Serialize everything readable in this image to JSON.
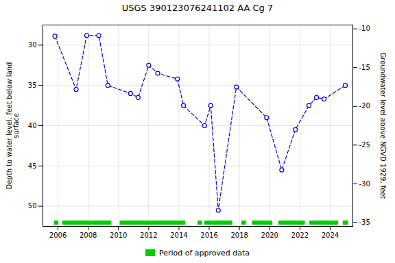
{
  "chart_data": {
    "type": "line",
    "title": "USGS 390123076241102 AA Cg   7",
    "x": [
      2005.8,
      2007.2,
      2007.9,
      2008.7,
      2009.3,
      2010.8,
      2011.3,
      2012.0,
      2012.6,
      2013.9,
      2014.3,
      2015.7,
      2016.1,
      2016.6,
      2017.8,
      2019.8,
      2020.8,
      2021.7,
      2022.6,
      2023.1,
      2023.6,
      2025.0
    ],
    "series": [
      {
        "color": "#0000cc",
        "line_style": "dashed",
        "marker": "o",
        "values": [
          28.9,
          35.5,
          28.8,
          28.8,
          35.0,
          36.0,
          36.5,
          32.5,
          33.5,
          34.2,
          37.5,
          40.0,
          37.5,
          50.5,
          35.2,
          39.0,
          45.5,
          40.5,
          37.5,
          36.5,
          36.7,
          35.0
        ]
      }
    ],
    "approved_periods": {
      "name": "Period of approved data",
      "color": "#00cc00",
      "ranges": [
        [
          2005.75,
          2006.05
        ],
        [
          2006.3,
          2009.55
        ],
        [
          2010.1,
          2014.45
        ],
        [
          2015.25,
          2015.55
        ],
        [
          2015.7,
          2017.55
        ],
        [
          2018.15,
          2018.45
        ],
        [
          2018.85,
          2020.2
        ],
        [
          2020.6,
          2022.35
        ],
        [
          2022.65,
          2024.55
        ],
        [
          2024.85,
          2025.2
        ]
      ]
    },
    "xlim": [
      2005.0,
      2025.5
    ],
    "xticks": [
      2006,
      2008,
      2010,
      2012,
      2014,
      2016,
      2018,
      2020,
      2022,
      2024
    ],
    "ylabel": "Depth to water level, feet below land\nsurface",
    "ylim": [
      52.5,
      27.5
    ],
    "yticks": [
      30,
      35,
      40,
      45,
      50
    ],
    "y2label": "Groundwater level above NGVD 1929, feet",
    "y2lim": [
      -35.5,
      -9.5
    ],
    "y2ticks": [
      -10,
      -15,
      -20,
      -25,
      -30,
      -35
    ],
    "grid": true,
    "legend": "bottom"
  }
}
